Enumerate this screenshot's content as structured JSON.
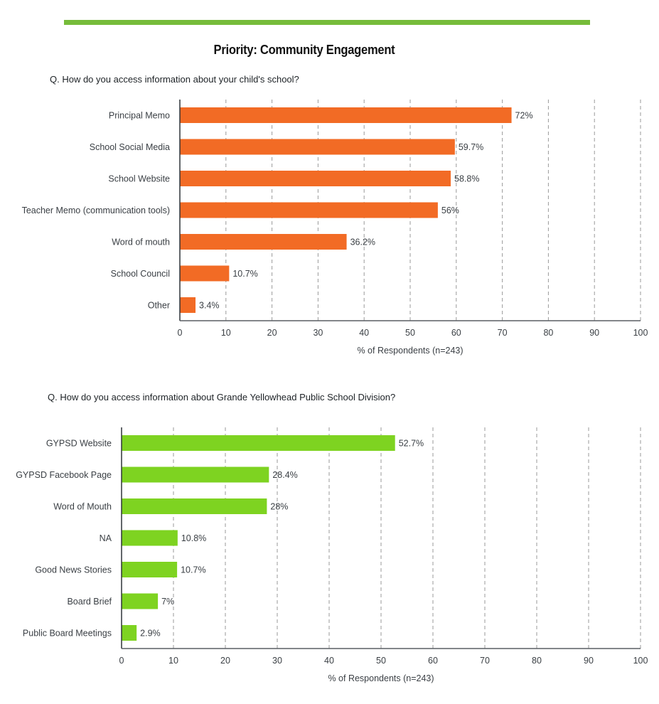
{
  "page": {
    "title": "Priority: Community Engagement",
    "accent_color": "#76bc3a"
  },
  "chart_data": [
    {
      "type": "bar",
      "orientation": "horizontal",
      "question": "Q. How do you access information about your child's school?",
      "categories": [
        "Principal Memo",
        "School Social Media",
        "School Website",
        "Teacher Memo (communication tools)",
        "Word of mouth",
        "School Council",
        "Other"
      ],
      "values": [
        72,
        59.7,
        58.8,
        56,
        36.2,
        10.7,
        3.4
      ],
      "value_labels": [
        "72%",
        "59.7%",
        "58.8%",
        "56%",
        "36.2%",
        "10.7%",
        "3.4%"
      ],
      "xlabel": "% of Respondents (n=243)",
      "ylabel": "",
      "xlim": [
        0,
        100
      ],
      "xticks": [
        0,
        10,
        20,
        30,
        40,
        50,
        60,
        70,
        80,
        90,
        100
      ],
      "grid": "vertical dashed",
      "color": "#f26b25"
    },
    {
      "type": "bar",
      "orientation": "horizontal",
      "question": "Q. How do you access information about Grande Yellowhead Public School Division?",
      "categories": [
        "GYPSD Website",
        "GYPSD Facebook Page",
        "Word of Mouth",
        "NA",
        "Good News Stories",
        "Board Brief",
        "Public Board Meetings"
      ],
      "values": [
        52.7,
        28.4,
        28,
        10.8,
        10.7,
        7,
        2.9
      ],
      "value_labels": [
        "52.7%",
        "28.4%",
        "28%",
        "10.8%",
        "10.7%",
        "7%",
        "2.9%"
      ],
      "xlabel": "% of Respondents (n=243)",
      "ylabel": "",
      "xlim": [
        0,
        100
      ],
      "xticks": [
        0,
        10,
        20,
        30,
        40,
        50,
        60,
        70,
        80,
        90,
        100
      ],
      "grid": "vertical dashed",
      "color": "#7ed321"
    }
  ]
}
